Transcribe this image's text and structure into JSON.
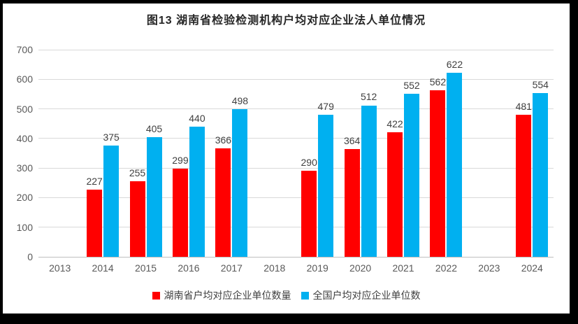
{
  "title": "图13 湖南省检验检测机构户均对应企业法人单位情况",
  "chart_data": {
    "type": "bar",
    "title": "图13 湖南省检验检测机构户均对应企业法人单位情况",
    "categories": [
      "2013",
      "2014",
      "2015",
      "2016",
      "2017",
      "2018",
      "2019",
      "2020",
      "2021",
      "2022",
      "2023",
      "2024"
    ],
    "series": [
      {
        "name": "湖南省户均对应企业单位数量",
        "color": "#ff0000",
        "values": [
          null,
          227,
          255,
          299,
          366,
          null,
          290,
          364,
          422,
          562,
          null,
          481
        ]
      },
      {
        "name": "全国户均对应企业单位数",
        "color": "#00b0f0",
        "values": [
          null,
          375,
          405,
          440,
          498,
          null,
          479,
          512,
          552,
          622,
          null,
          554
        ]
      }
    ],
    "xlabel": "",
    "ylabel": "",
    "ylim": [
      0,
      700
    ],
    "ytick_step": 100,
    "grid": true,
    "legend_position": "bottom",
    "data_labels": true
  },
  "colors": {
    "frame_border": "#000000",
    "background": "#ffffff",
    "gridline": "#d9d9d9",
    "axis_line": "#bfbfbf",
    "axis_text": "#595959",
    "value_label_text": "#404040",
    "title_text": "#262626"
  }
}
